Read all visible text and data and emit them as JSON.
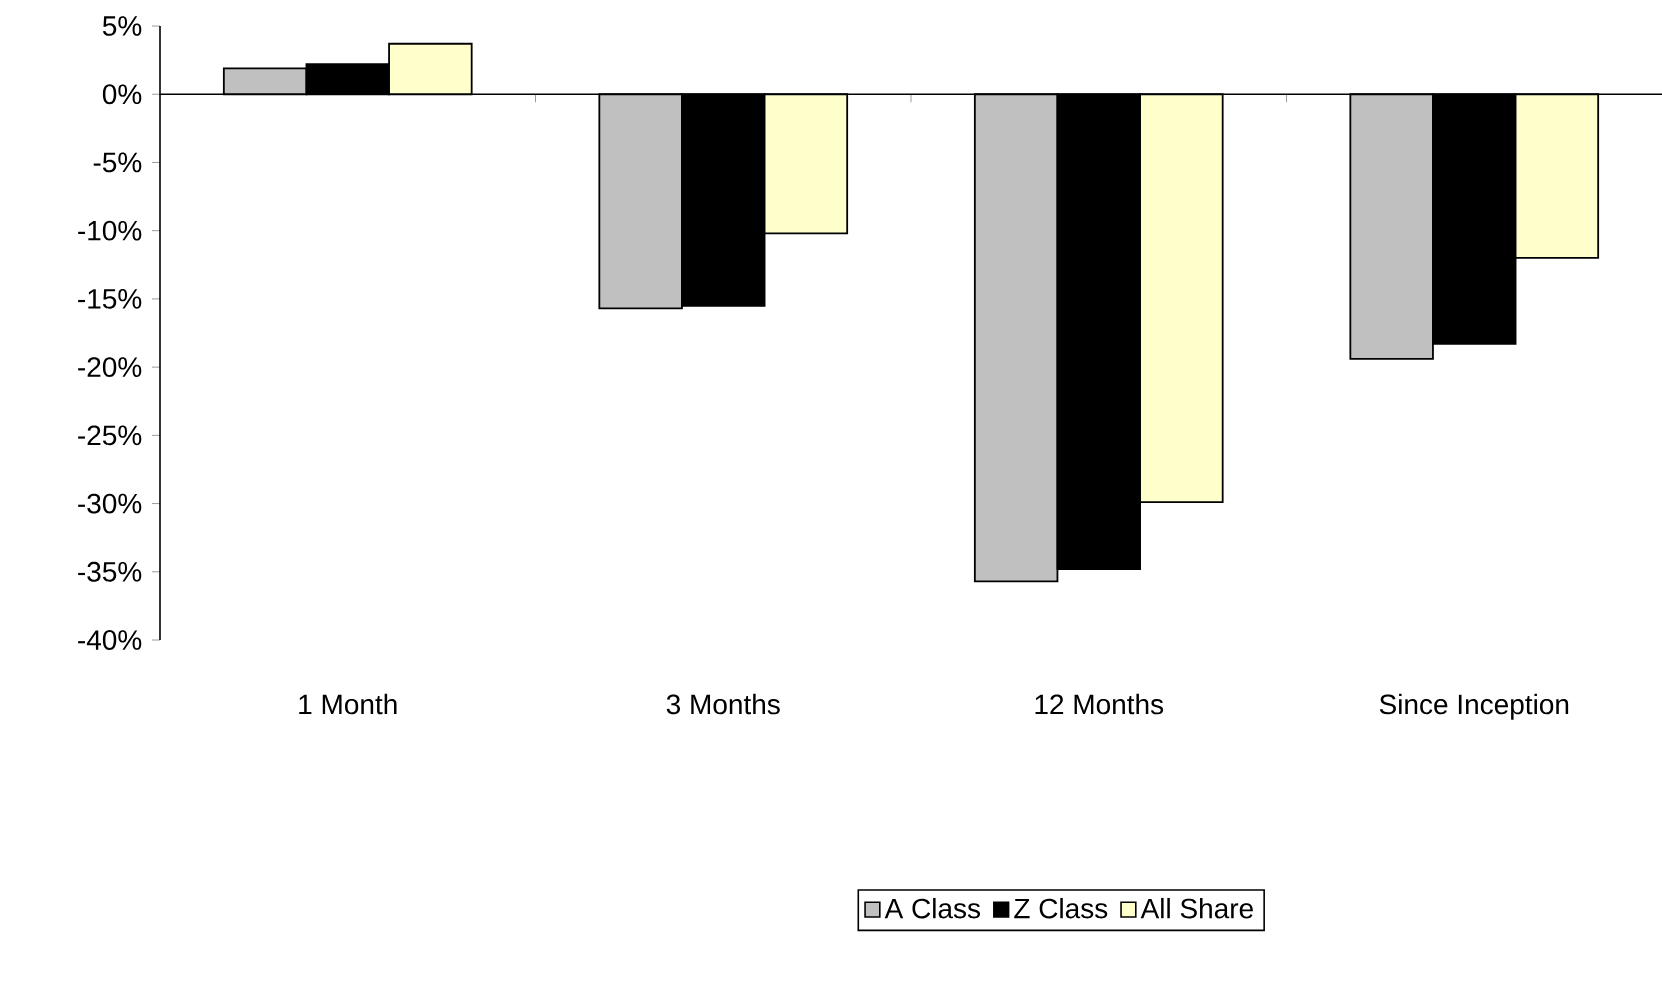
{
  "chart_data": {
    "type": "bar",
    "categories": [
      "1 Month",
      "3 Months",
      "12 Months",
      "Since Inception"
    ],
    "series": [
      {
        "name": "A Class",
        "color": "#c0c0c0",
        "values": [
          1.9,
          -15.7,
          -35.7,
          -19.4
        ]
      },
      {
        "name": "Z Class",
        "color": "#000000",
        "values": [
          2.2,
          -15.5,
          -34.8,
          -18.3
        ]
      },
      {
        "name": "All Share",
        "color": "#ffffcc",
        "values": [
          3.7,
          -10.2,
          -29.9,
          -12.0
        ]
      }
    ],
    "ylim": [
      -40,
      5
    ],
    "yticks": [
      {
        "value": 5,
        "label": "5%"
      },
      {
        "value": 0,
        "label": "0%"
      },
      {
        "value": -5,
        "label": "-5%"
      },
      {
        "value": -10,
        "label": "-10%"
      },
      {
        "value": -15,
        "label": "-15%"
      },
      {
        "value": -20,
        "label": "-20%"
      },
      {
        "value": -25,
        "label": "-25%"
      },
      {
        "value": -30,
        "label": "-30%"
      },
      {
        "value": -35,
        "label": "-35%"
      },
      {
        "value": -40,
        "label": "-40%"
      }
    ],
    "legend": "bottom"
  }
}
